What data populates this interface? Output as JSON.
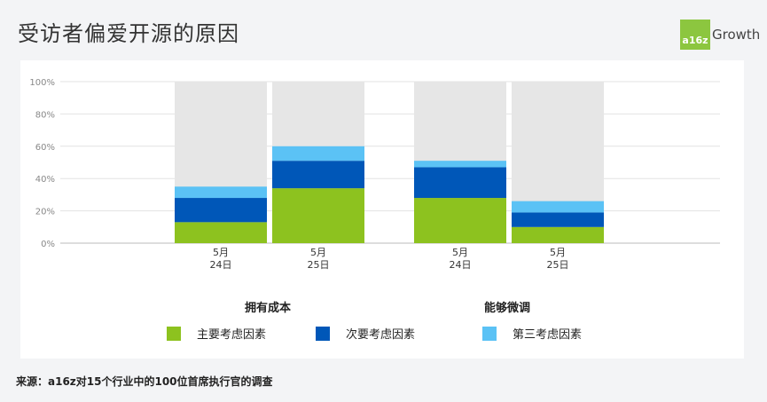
{
  "title": "受访者偏爱开源的原因",
  "logo": {
    "mark": "a16z",
    "text": "Growth"
  },
  "source": "来源：a16z对15个行业中的100位首席执行官的调查",
  "chart_data": {
    "type": "bar",
    "stacked": true,
    "ylim": [
      0,
      100
    ],
    "yticks": [
      "0%",
      "20%",
      "40%",
      "60%",
      "80%",
      "100%"
    ],
    "categories": [
      "5月\n24日",
      "5月\n25日",
      "5月\n24日",
      "5月\n25日"
    ],
    "groups": [
      {
        "label": "拥有成本",
        "categories": [
          0,
          1
        ]
      },
      {
        "label": "能够微调",
        "categories": [
          2,
          3
        ]
      }
    ],
    "series": [
      {
        "name": "主要考虑因素",
        "color": "#8dc21f",
        "values": [
          13,
          34,
          28,
          10
        ]
      },
      {
        "name": "次要考虑因素",
        "color": "#0057b8",
        "values": [
          15,
          17,
          19,
          9
        ]
      },
      {
        "name": "第三考虑因素",
        "color": "#5bc2f5",
        "values": [
          7,
          9,
          4,
          7
        ]
      }
    ],
    "remainder_color": "#e6e6e6",
    "grid": true,
    "legend": "bottom"
  }
}
